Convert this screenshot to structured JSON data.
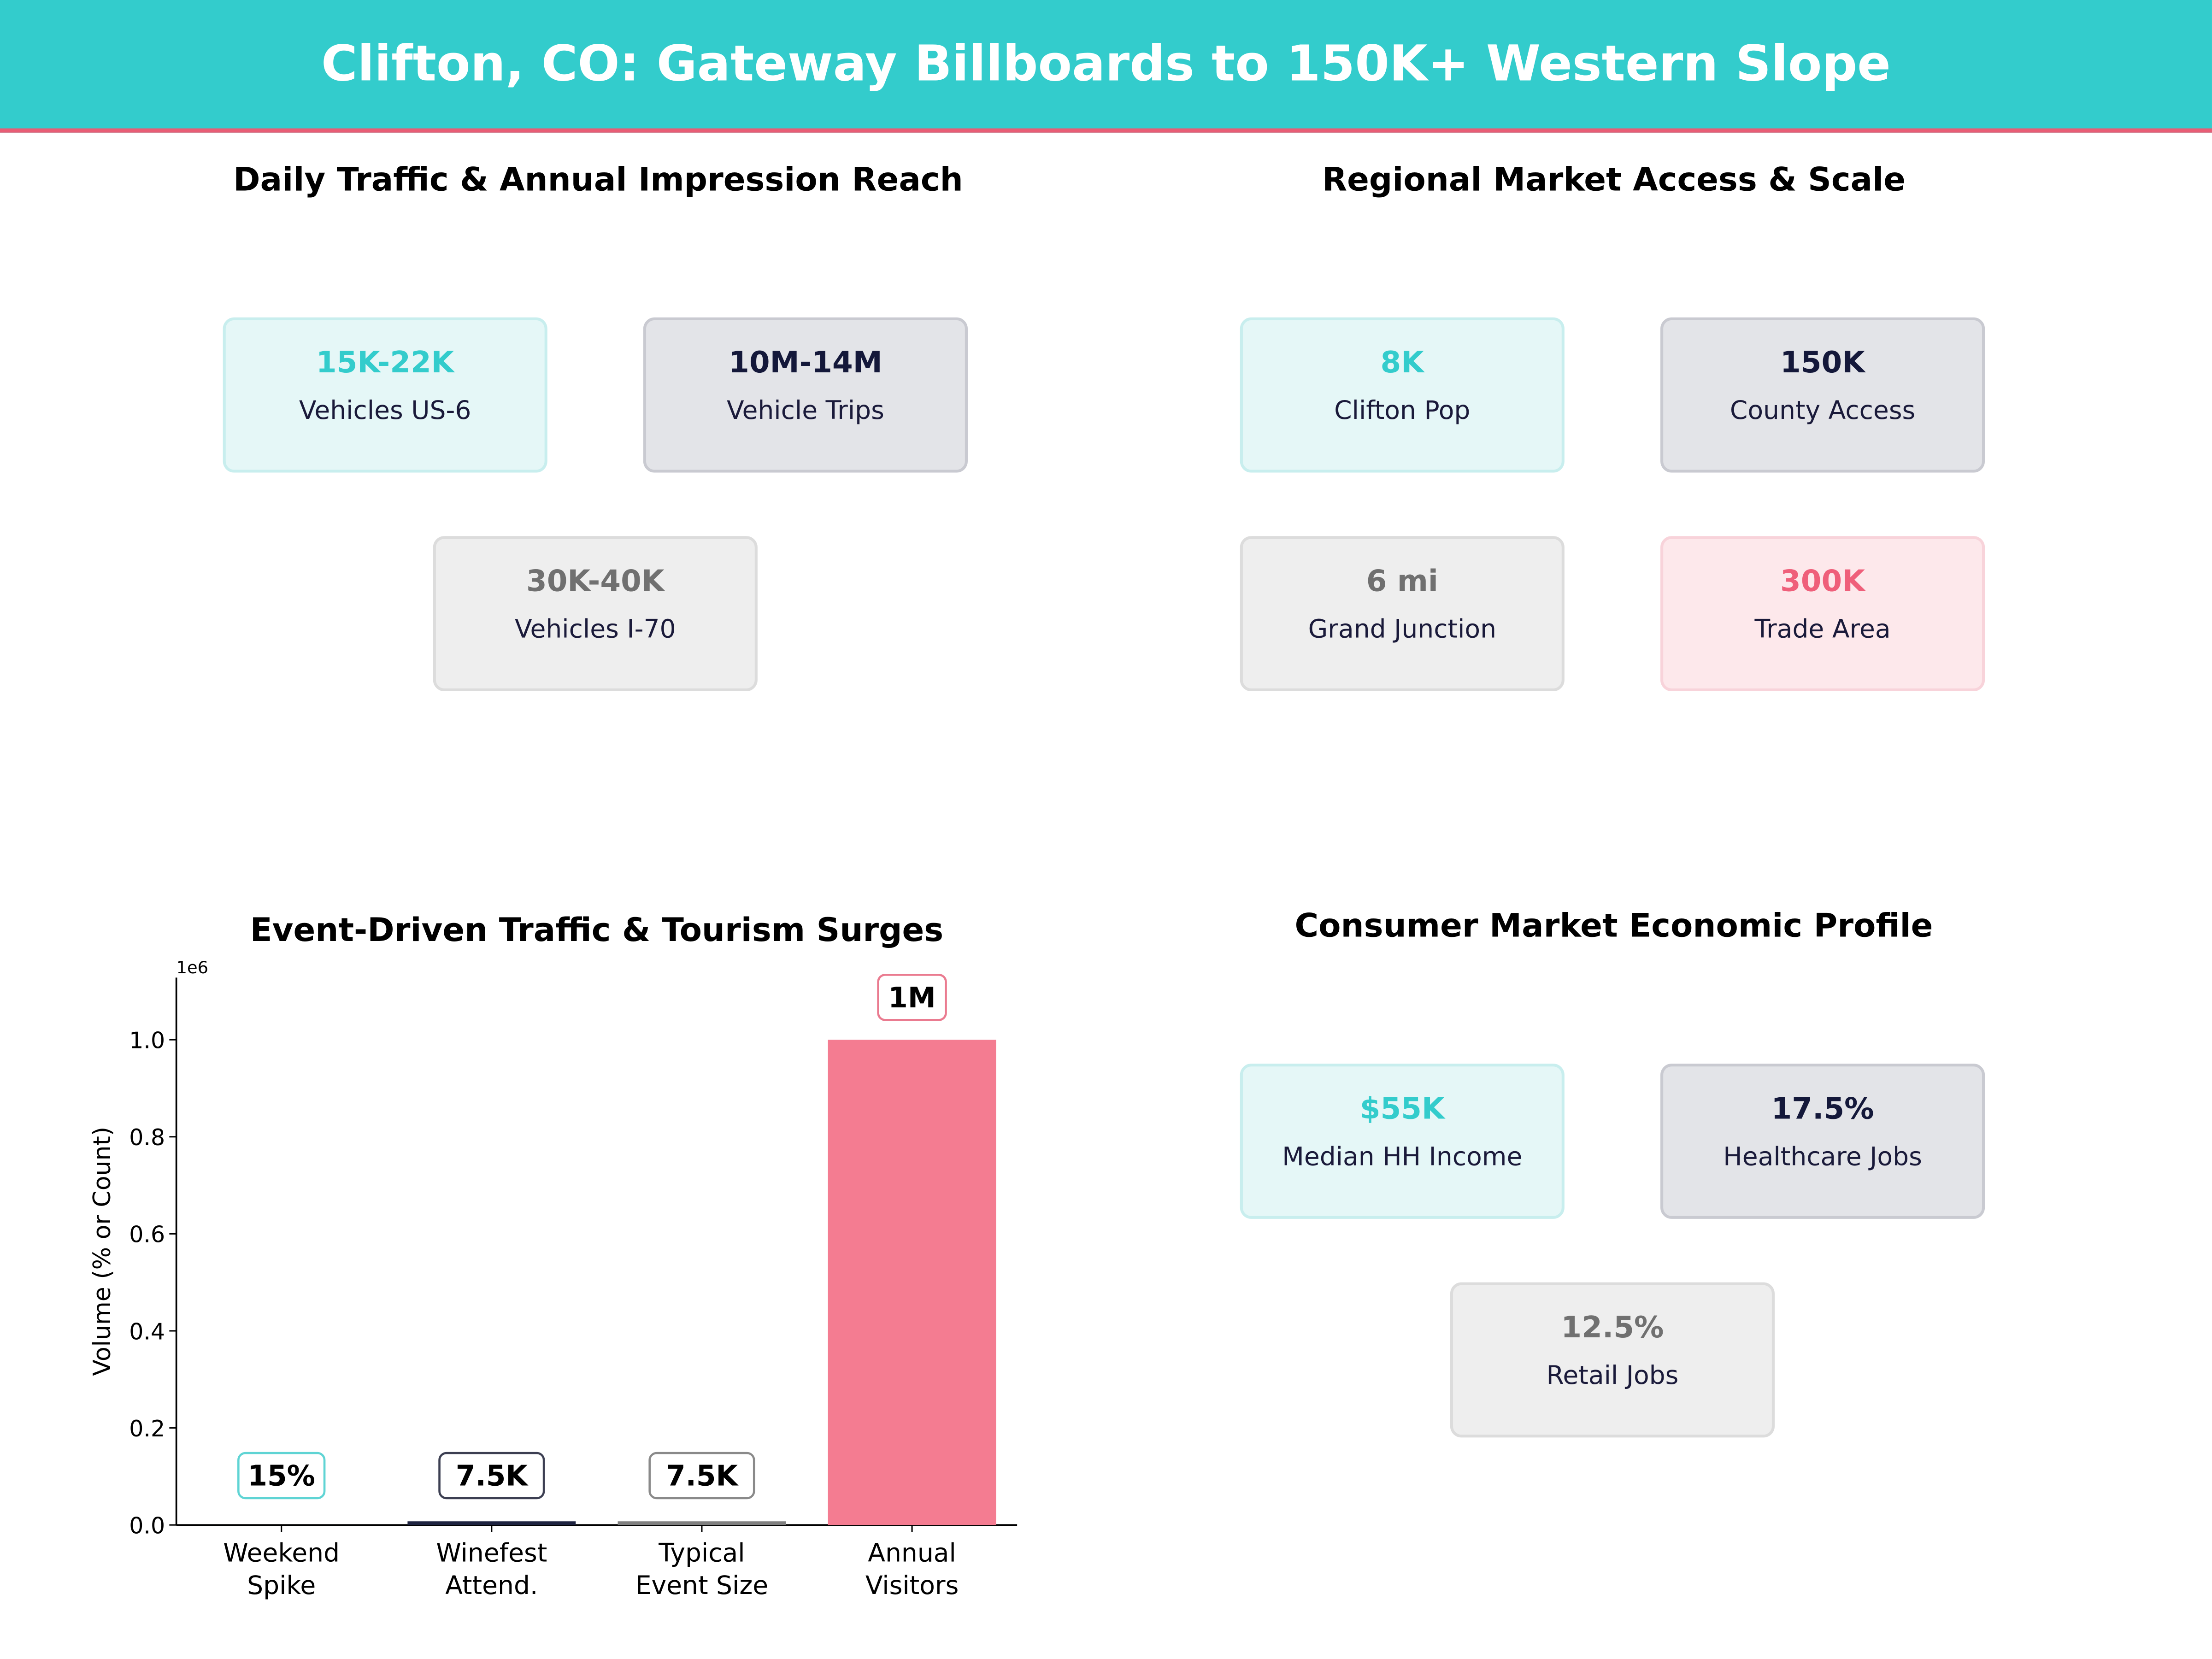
{
  "title": "Clifton, CO: Gateway Billboards to 150K+ Western Slope",
  "panels": {
    "traffic": {
      "title": "Daily Traffic & Annual Impression Reach",
      "cards": [
        {
          "value": "15K-22K",
          "label": "Vehicles US-6",
          "color": "teal"
        },
        {
          "value": "10M-14M",
          "label": "Vehicle Trips",
          "color": "navy"
        },
        {
          "value": "30K-40K",
          "label": "Vehicles I-70",
          "color": "gray"
        }
      ]
    },
    "market": {
      "title": "Regional Market Access & Scale",
      "cards": [
        {
          "value": "8K",
          "label": "Clifton Pop",
          "color": "teal"
        },
        {
          "value": "150K",
          "label": "County Access",
          "color": "navy"
        },
        {
          "value": "6 mi",
          "label": "Grand Junction",
          "color": "gray"
        },
        {
          "value": "300K",
          "label": "Trade Area",
          "color": "pink"
        }
      ]
    },
    "economic": {
      "title": "Consumer Market Economic Profile",
      "cards": [
        {
          "value": "$55K",
          "label": "Median HH Income",
          "color": "teal"
        },
        {
          "value": "17.5%",
          "label": "Healthcare Jobs",
          "color": "navy"
        },
        {
          "value": "12.5%",
          "label": "Retail Jobs",
          "color": "gray"
        }
      ]
    }
  },
  "chart_data": {
    "type": "bar",
    "title": "Event-Driven Traffic & Tourism Surges",
    "categories": [
      "Weekend\nSpike",
      "Winefest\nAttend.",
      "Typical\nEvent Size",
      "Annual\nVisitors"
    ],
    "values": [
      15,
      7500,
      7500,
      1000000
    ],
    "data_labels": [
      "15%",
      "7.5K",
      "7.5K",
      "1M"
    ],
    "colors": [
      "#33cccc",
      "#1e2340",
      "#808080",
      "#f47c91"
    ],
    "label_border_colors": [
      "#5fd4d4",
      "#3c3f52",
      "#8a8a8a",
      "#ea7b90"
    ],
    "ylabel": "Volume (% or Count)",
    "xlabel": "",
    "offset_text": "1e6",
    "ylim": [
      0,
      1128000
    ],
    "yticks": [
      0,
      200000,
      400000,
      600000,
      800000,
      1000000
    ],
    "ytick_labels": [
      "0.0",
      "0.2",
      "0.4",
      "0.6",
      "0.8",
      "1.0"
    ],
    "grid": false
  }
}
